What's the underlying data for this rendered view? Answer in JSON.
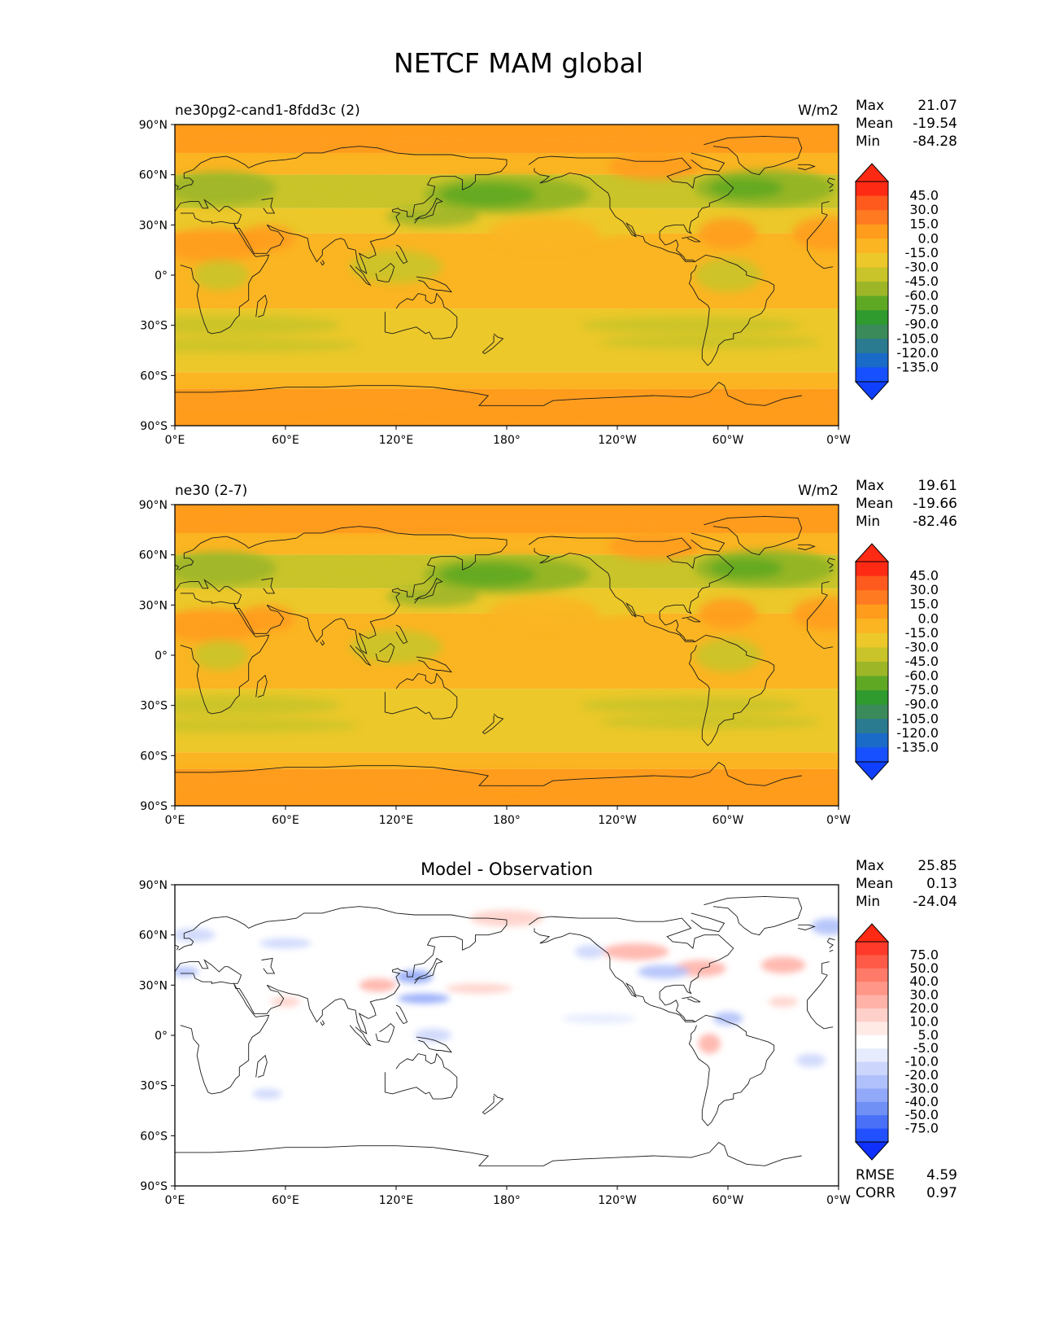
{
  "figure": {
    "title": "NETCF MAM global"
  },
  "axes": {
    "lat_ticks": [
      "90°N",
      "60°N",
      "30°N",
      "0°",
      "30°S",
      "60°S",
      "90°S"
    ],
    "lon_ticks": [
      "0°E",
      "60°E",
      "120°E",
      "180°",
      "120°W",
      "60°W",
      "0°W"
    ]
  },
  "panels": [
    {
      "id": "test",
      "left_title": "ne30pg2-cand1-8fdd3c (2)",
      "right_title": "W/m2",
      "center_title": "",
      "stats": [
        {
          "label": "Max",
          "value": "21.07"
        },
        {
          "label": "Mean",
          "value": "-19.54"
        },
        {
          "label": "Min",
          "value": "-84.28"
        }
      ],
      "colorbar": {
        "labels": [
          "45.0",
          "30.0",
          "15.0",
          "0.0",
          "-15.0",
          "-30.0",
          "-45.0",
          "-60.0",
          "-75.0",
          "-90.0",
          "-105.0",
          "-120.0",
          "-135.0"
        ],
        "colors": [
          "#ff2a14",
          "#ff5a1e",
          "#ff7a20",
          "#ff9c1c",
          "#fbb522",
          "#ecc82a",
          "#c9c42a",
          "#9db628",
          "#5fa824",
          "#2f9a2e",
          "#3a8a5a",
          "#2a7a90",
          "#1a6ac8",
          "#1650ff"
        ],
        "extend_max_color": "#ff2a14",
        "extend_min_color": "#1040ff"
      }
    },
    {
      "id": "ref",
      "left_title": "ne30 (2-7)",
      "right_title": "W/m2",
      "center_title": "",
      "stats": [
        {
          "label": "Max",
          "value": "19.61"
        },
        {
          "label": "Mean",
          "value": "-19.66"
        },
        {
          "label": "Min",
          "value": "-82.46"
        }
      ],
      "colorbar": {
        "labels": [
          "45.0",
          "30.0",
          "15.0",
          "0.0",
          "-15.0",
          "-30.0",
          "-45.0",
          "-60.0",
          "-75.0",
          "-90.0",
          "-105.0",
          "-120.0",
          "-135.0"
        ],
        "colors": [
          "#ff2a14",
          "#ff5a1e",
          "#ff7a20",
          "#ff9c1c",
          "#fbb522",
          "#ecc82a",
          "#c9c42a",
          "#9db628",
          "#5fa824",
          "#2f9a2e",
          "#3a8a5a",
          "#2a7a90",
          "#1a6ac8",
          "#1650ff"
        ],
        "extend_max_color": "#ff2a14",
        "extend_min_color": "#1040ff"
      }
    },
    {
      "id": "diff",
      "left_title": "",
      "right_title": "",
      "center_title": "Model - Observation",
      "stats": [
        {
          "label": "Max",
          "value": "25.85"
        },
        {
          "label": "Mean",
          "value": "0.13"
        },
        {
          "label": "Min",
          "value": "-24.04"
        }
      ],
      "colorbar": {
        "labels": [
          "75.0",
          "50.0",
          "40.0",
          "30.0",
          "20.0",
          "10.0",
          "5.0",
          "-5.0",
          "-10.0",
          "-20.0",
          "-30.0",
          "-40.0",
          "-50.0",
          "-75.0"
        ],
        "colors": [
          "#ff3a2a",
          "#ff5a48",
          "#ff7a68",
          "#ff9688",
          "#ffb2a8",
          "#ffd0ca",
          "#ffeae6",
          "#ffffff",
          "#e6ecfe",
          "#ccd6fc",
          "#b0c0fa",
          "#92a8f8",
          "#7090f6",
          "#4a70f8",
          "#2250ff"
        ],
        "extend_max_color": "#ff2a14",
        "extend_min_color": "#1030ff"
      },
      "metrics": [
        {
          "label": "RMSE",
          "value": "4.59"
        },
        {
          "label": "CORR",
          "value": "0.97"
        }
      ]
    }
  ]
}
